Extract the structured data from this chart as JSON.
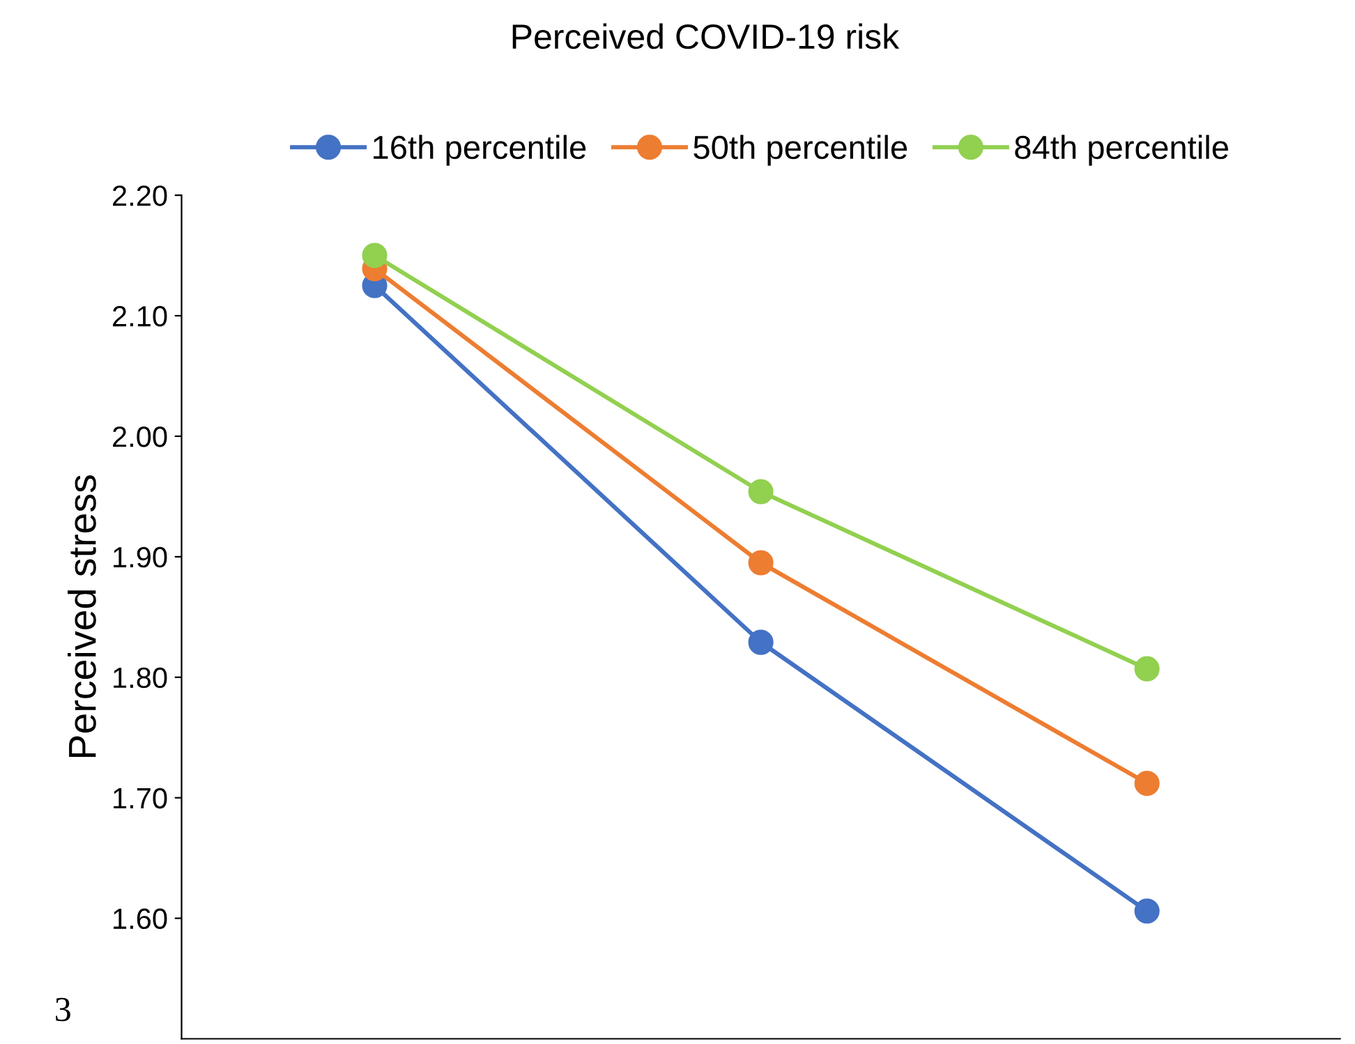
{
  "chart_data": {
    "type": "line",
    "title": "Perceived COVID-19 risk",
    "ylabel": "Perceived stress",
    "categories": [
      null,
      null,
      null
    ],
    "series": [
      {
        "name": "16th percentile",
        "color": "#4472c4",
        "values": [
          2.125,
          1.829,
          1.606
        ]
      },
      {
        "name": "50th percentile",
        "color": "#ed7d31",
        "values": [
          2.139,
          1.895,
          1.712
        ]
      },
      {
        "name": "84th percentile",
        "color": "#92d050",
        "values": [
          2.15,
          1.954,
          1.807
        ]
      }
    ],
    "ylim": [
      1.5,
      2.2
    ],
    "yticks": [
      {
        "value": 1.6,
        "label": "1.60"
      },
      {
        "value": 1.7,
        "label": "1.70"
      },
      {
        "value": 1.8,
        "label": "1.80"
      },
      {
        "value": 1.9,
        "label": "1.90"
      },
      {
        "value": 2.0,
        "label": "2.00"
      },
      {
        "value": 2.1,
        "label": "2.10"
      },
      {
        "value": 2.2,
        "label": "2.20"
      }
    ],
    "annotations": [
      "3"
    ],
    "legend": "top",
    "marker": "circle",
    "line_style": "solid",
    "grid": false
  }
}
